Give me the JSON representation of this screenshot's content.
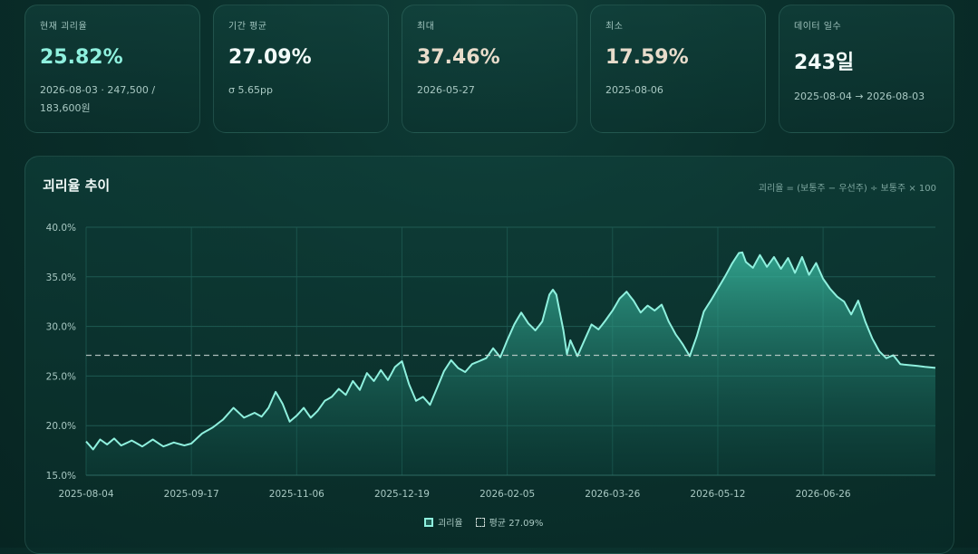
{
  "cards": [
    {
      "label": "현재 괴리율",
      "value": "25.82%",
      "sub": "2026-08-03 · 247,500 / 183,600원",
      "tone": "cyan"
    },
    {
      "label": "기간 평균",
      "value": "27.09%",
      "sub": "σ 5.65pp",
      "tone": "white"
    },
    {
      "label": "최대",
      "value": "37.46%",
      "sub": "2026-05-27",
      "tone": "beige"
    },
    {
      "label": "최소",
      "value": "17.59%",
      "sub": "2025-08-06",
      "tone": "beige"
    },
    {
      "label": "데이터 일수",
      "value": "243일",
      "sub": "2025-08-04 → 2026-08-03",
      "tone": "white"
    }
  ],
  "panel": {
    "title": "괴리율 추이",
    "formula": "괴리율 = (보통주 − 우선주) ÷ 보통주 × 100"
  },
  "legend": {
    "series_label": "괴리율",
    "mean_label": "평균 27.09%"
  },
  "colors": {
    "line": "#8ff0de",
    "fill": "#2fa38f",
    "mean": "#c9d6d3",
    "grid": "#1e5a52",
    "tick": "#a9c9c3"
  },
  "chart_data": {
    "type": "area",
    "ylim": [
      15,
      40
    ],
    "yticks": [
      "15.0%",
      "20.0%",
      "25.0%",
      "30.0%",
      "35.0%",
      "40.0%"
    ],
    "ytick_values": [
      15,
      20,
      25,
      30,
      35,
      40
    ],
    "xticks": [
      "2025-08-04",
      "2025-09-17",
      "2025-11-06",
      "2025-12-19",
      "2026-02-05",
      "2026-03-26",
      "2026-05-12",
      "2026-06-26"
    ],
    "xtick_index": [
      0,
      30,
      60,
      90,
      120,
      150,
      180,
      210
    ],
    "n_points": 243,
    "mean": 27.09,
    "keypoints": [
      [
        0,
        18.4
      ],
      [
        2,
        17.6
      ],
      [
        4,
        18.6
      ],
      [
        6,
        18.1
      ],
      [
        8,
        18.7
      ],
      [
        10,
        18.0
      ],
      [
        13,
        18.5
      ],
      [
        16,
        17.9
      ],
      [
        19,
        18.6
      ],
      [
        22,
        17.9
      ],
      [
        25,
        18.3
      ],
      [
        28,
        18.0
      ],
      [
        30,
        18.2
      ],
      [
        33,
        19.2
      ],
      [
        36,
        19.8
      ],
      [
        39,
        20.6
      ],
      [
        42,
        21.8
      ],
      [
        45,
        20.8
      ],
      [
        48,
        21.3
      ],
      [
        50,
        20.9
      ],
      [
        52,
        21.8
      ],
      [
        54,
        23.4
      ],
      [
        56,
        22.2
      ],
      [
        58,
        20.4
      ],
      [
        60,
        21.0
      ],
      [
        62,
        21.8
      ],
      [
        64,
        20.8
      ],
      [
        66,
        21.5
      ],
      [
        68,
        22.5
      ],
      [
        70,
        22.9
      ],
      [
        72,
        23.7
      ],
      [
        74,
        23.1
      ],
      [
        76,
        24.5
      ],
      [
        78,
        23.6
      ],
      [
        80,
        25.3
      ],
      [
        82,
        24.5
      ],
      [
        84,
        25.6
      ],
      [
        86,
        24.6
      ],
      [
        88,
        25.9
      ],
      [
        90,
        26.5
      ],
      [
        92,
        24.2
      ],
      [
        94,
        22.5
      ],
      [
        96,
        22.9
      ],
      [
        98,
        22.1
      ],
      [
        100,
        23.8
      ],
      [
        102,
        25.5
      ],
      [
        104,
        26.6
      ],
      [
        106,
        25.8
      ],
      [
        108,
        25.4
      ],
      [
        110,
        26.2
      ],
      [
        112,
        26.5
      ],
      [
        114,
        26.8
      ],
      [
        116,
        27.8
      ],
      [
        118,
        26.9
      ],
      [
        120,
        28.6
      ],
      [
        122,
        30.2
      ],
      [
        124,
        31.4
      ],
      [
        126,
        30.3
      ],
      [
        128,
        29.6
      ],
      [
        130,
        30.5
      ],
      [
        132,
        33.2
      ],
      [
        133,
        33.7
      ],
      [
        134,
        33.2
      ],
      [
        136,
        29.6
      ],
      [
        137,
        27.2
      ],
      [
        138,
        28.6
      ],
      [
        140,
        27.0
      ],
      [
        142,
        28.6
      ],
      [
        144,
        30.2
      ],
      [
        146,
        29.7
      ],
      [
        148,
        30.6
      ],
      [
        150,
        31.6
      ],
      [
        152,
        32.8
      ],
      [
        154,
        33.5
      ],
      [
        156,
        32.6
      ],
      [
        158,
        31.4
      ],
      [
        160,
        32.1
      ],
      [
        162,
        31.6
      ],
      [
        164,
        32.2
      ],
      [
        166,
        30.5
      ],
      [
        168,
        29.2
      ],
      [
        170,
        28.2
      ],
      [
        172,
        27.0
      ],
      [
        174,
        29.0
      ],
      [
        176,
        31.5
      ],
      [
        178,
        32.6
      ],
      [
        180,
        33.8
      ],
      [
        182,
        35.0
      ],
      [
        184,
        36.3
      ],
      [
        186,
        37.4
      ],
      [
        187,
        37.46
      ],
      [
        188,
        36.5
      ],
      [
        190,
        35.9
      ],
      [
        192,
        37.2
      ],
      [
        194,
        36.0
      ],
      [
        196,
        37.0
      ],
      [
        198,
        35.8
      ],
      [
        200,
        36.9
      ],
      [
        202,
        35.4
      ],
      [
        204,
        37.0
      ],
      [
        206,
        35.2
      ],
      [
        208,
        36.4
      ],
      [
        210,
        34.8
      ],
      [
        212,
        33.8
      ],
      [
        214,
        33.0
      ],
      [
        216,
        32.5
      ],
      [
        218,
        31.2
      ],
      [
        220,
        32.6
      ],
      [
        222,
        30.5
      ],
      [
        224,
        28.8
      ],
      [
        226,
        27.5
      ],
      [
        228,
        26.8
      ],
      [
        230,
        27.1
      ],
      [
        232,
        26.2
      ],
      [
        242,
        25.82
      ]
    ]
  }
}
